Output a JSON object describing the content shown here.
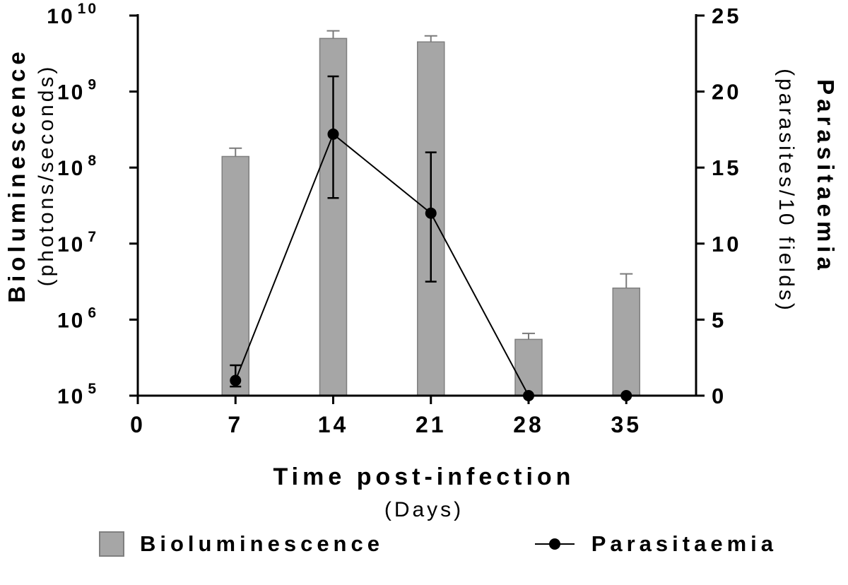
{
  "chart_data": {
    "type": "bar",
    "subtype": "dual-axis bar + line",
    "title": "",
    "x_axis": {
      "title": "Time post-infection",
      "subtitle": "(Days)",
      "range": [
        0,
        40
      ],
      "ticks": [
        0,
        7,
        14,
        21,
        28,
        35
      ]
    },
    "left_axis": {
      "title": "Bioluminescence",
      "subtitle": "(photons/seconds)",
      "scale": "log",
      "range": [
        100000.0,
        10000000000.0
      ],
      "tick_exponents": [
        10,
        9,
        8,
        7,
        6,
        5
      ],
      "tick_base": "10"
    },
    "right_axis": {
      "title": "Parasitaemia",
      "subtitle": "(parasites/10 fields)",
      "scale": "linear",
      "range": [
        0,
        25
      ],
      "ticks": [
        25,
        20,
        15,
        10,
        5,
        0
      ]
    },
    "series": [
      {
        "name": "Bioluminescence",
        "type": "bar",
        "axis": "left",
        "x": [
          7,
          14,
          21,
          28,
          35
        ],
        "values": [
          140000000.0,
          5000000000.0,
          4500000000.0,
          550000.0,
          2600000.0
        ],
        "error_high": [
          180000000.0,
          6300000000.0,
          5400000000.0,
          660000.0,
          4000000.0
        ]
      },
      {
        "name": "Parasitaemia",
        "type": "line",
        "axis": "right",
        "x": [
          7,
          14,
          21,
          28,
          35
        ],
        "values": [
          1.0,
          17.2,
          12.0,
          0,
          0
        ],
        "error_low": [
          0.6,
          13.0,
          7.5,
          0,
          0
        ],
        "error_high": [
          2.0,
          21.0,
          16.0,
          0,
          0
        ]
      }
    ],
    "legend": [
      "Bioluminescence",
      "Parasitaemia"
    ],
    "grid": false,
    "legend_position": "bottom"
  },
  "left_axis": {
    "title": "Bioluminescence",
    "subtitle": "(photons/seconds)"
  },
  "right_axis": {
    "title": "Parasitaemia",
    "subtitle": "(parasites/10 fields)"
  },
  "x_axis": {
    "title": "Time post-infection",
    "subtitle": "(Days)"
  },
  "legend": {
    "bar_label": "Bioluminescence",
    "line_label": "Parasitaemia"
  },
  "colors": {
    "bar_fill": "#a6a6a6",
    "bar_stroke": "#7f7f7f",
    "bar_error": "#7a7a7a",
    "line_color": "#000000",
    "axis_color": "#000000"
  }
}
